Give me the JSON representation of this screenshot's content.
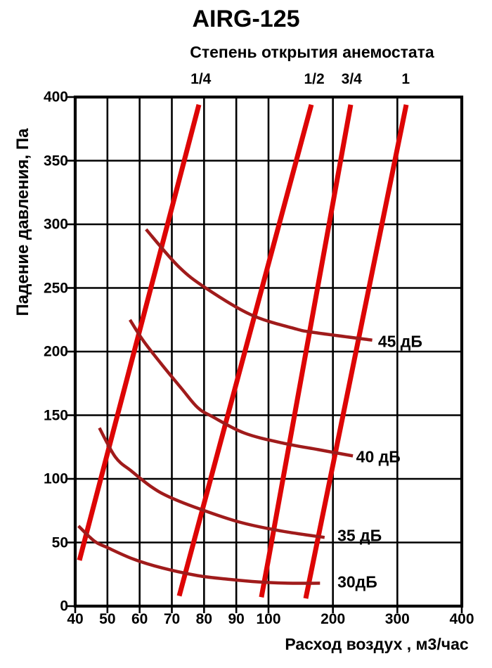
{
  "chart_data": {
    "type": "line",
    "title": "AIRG-125",
    "top_axis_title": "Степень открытия анемостата",
    "xlabel": "Расход воздух , м3/час",
    "ylabel": "Падение давления, Па",
    "x_ticks": [
      40,
      50,
      60,
      70,
      80,
      90,
      100,
      200,
      300,
      400
    ],
    "y_ticks": [
      0,
      50,
      100,
      150,
      200,
      250,
      300,
      350,
      400
    ],
    "xlim": [
      40,
      400
    ],
    "ylim": [
      0,
      400
    ],
    "x_scale_note": "piecewise-uniform axis: equal spacing per 10 m3/h between 40-100, equal spacing per 100 m3/h between 100-400",
    "grid": true,
    "legend_position": "none",
    "colors": {
      "opening_lines": "#dd0505",
      "noise_curves": "#a01b1b",
      "grid": "#000000",
      "text": "#000000",
      "background": "#ffffff"
    },
    "top_axis_labels": [
      {
        "text": "1/4",
        "flow": 79
      },
      {
        "text": "1/2",
        "flow": 171
      },
      {
        "text": "3/4",
        "flow": 229
      },
      {
        "text": "1",
        "flow": 313
      }
    ],
    "series": [
      {
        "name": "opening-1-4",
        "group": "opening",
        "label": "1/4",
        "smooth": false,
        "points": [
          [
            41.3,
            36
          ],
          [
            78.4,
            394
          ]
        ]
      },
      {
        "name": "opening-1-2",
        "group": "opening",
        "label": "1/2",
        "smooth": false,
        "points": [
          [
            72.3,
            8
          ],
          [
            100,
            269
          ],
          [
            166.5,
            394
          ]
        ]
      },
      {
        "name": "opening-3-4",
        "group": "opening",
        "label": "3/4",
        "smooth": false,
        "points": [
          [
            97.8,
            7
          ],
          [
            100,
            37
          ],
          [
            227.6,
            394
          ]
        ]
      },
      {
        "name": "opening-1",
        "group": "opening",
        "label": "1",
        "smooth": false,
        "points": [
          [
            157.8,
            6
          ],
          [
            313.8,
            394
          ]
        ]
      },
      {
        "name": "noise-45db",
        "group": "noise",
        "label": "45 дБ",
        "smooth": true,
        "label_at": [
          270,
          208
        ],
        "points": [
          [
            62,
            296
          ],
          [
            72,
            267
          ],
          [
            80.5,
            250
          ],
          [
            94.5,
            229
          ],
          [
            141,
            218
          ],
          [
            171,
            215
          ],
          [
            261,
            209
          ]
        ]
      },
      {
        "name": "noise-40db",
        "group": "noise",
        "label": "40 дБ",
        "smooth": true,
        "label_at": [
          236,
          117
        ],
        "points": [
          [
            57,
            225
          ],
          [
            61,
            209
          ],
          [
            66.5,
            191
          ],
          [
            73,
            171
          ],
          [
            78,
            156
          ],
          [
            82.5,
            149
          ],
          [
            92.5,
            136
          ],
          [
            123,
            128
          ],
          [
            177,
            123
          ],
          [
            231,
            118
          ]
        ]
      },
      {
        "name": "noise-35db",
        "group": "noise",
        "label": "35 дБ",
        "smooth": true,
        "label_at": [
          207,
          55
        ],
        "points": [
          [
            47.5,
            140
          ],
          [
            52.5,
            117
          ],
          [
            57.5,
            106
          ],
          [
            63.5,
            94
          ],
          [
            69,
            86
          ],
          [
            79,
            76
          ],
          [
            91,
            66
          ],
          [
            120,
            59
          ],
          [
            187,
            54
          ]
        ]
      },
      {
        "name": "noise-30db",
        "group": "noise",
        "label": "30дБ",
        "smooth": true,
        "label_at": [
          207,
          19
        ],
        "points": [
          [
            41,
            63
          ],
          [
            46,
            51
          ],
          [
            50,
            46
          ],
          [
            58,
            37
          ],
          [
            67,
            30
          ],
          [
            78,
            24
          ],
          [
            88,
            21
          ],
          [
            97,
            19
          ],
          [
            130,
            18
          ],
          [
            180,
            18
          ]
        ]
      }
    ]
  }
}
